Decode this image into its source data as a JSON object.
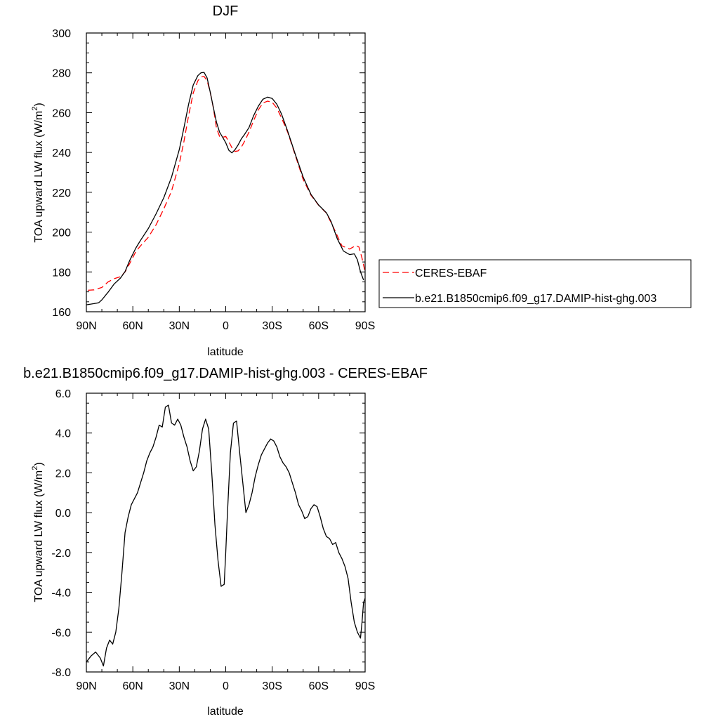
{
  "chart_data": [
    {
      "type": "line",
      "title": "DJF",
      "xlabel": "latitude",
      "ylabel": "TOA upward LW flux (W/m",
      "ylabel_sup": "2",
      "ylabel_end": ")",
      "xlim": [
        90,
        -90
      ],
      "ylim": [
        160,
        300
      ],
      "xticks": [
        90,
        60,
        30,
        0,
        -30,
        -60,
        -90
      ],
      "xticklabels": [
        "90N",
        "60N",
        "30N",
        "0",
        "30S",
        "60S",
        "90S"
      ],
      "yticks": [
        160,
        180,
        200,
        220,
        240,
        260,
        280,
        300
      ],
      "yticklabels": [
        "160",
        "180",
        "200",
        "220",
        "240",
        "260",
        "280",
        "300"
      ],
      "legend_position": "right",
      "series": [
        {
          "name": "CERES-EBAF",
          "color": "#ff0000",
          "dash": "dashed",
          "x": [
            89,
            85,
            80,
            76,
            72,
            68,
            65,
            62,
            58,
            55,
            50,
            45,
            40,
            35,
            30,
            27,
            24,
            21,
            18,
            16,
            14,
            12,
            10,
            8,
            6,
            4,
            2,
            0,
            -2,
            -4,
            -6,
            -8,
            -10,
            -12,
            -15,
            -18,
            -21,
            -24,
            -27,
            -30,
            -33,
            -36,
            -40,
            -45,
            -50,
            -55,
            -60,
            -65,
            -70,
            -75,
            -80,
            -84,
            -86,
            -88,
            -90
          ],
          "y": [
            170.8,
            171,
            172.2,
            175,
            176.6,
            177.6,
            180,
            184.3,
            190.3,
            193.1,
            197.4,
            203.7,
            211.7,
            220.6,
            234.3,
            245.4,
            258.5,
            269.9,
            276,
            277.9,
            278.2,
            276,
            270.3,
            262.3,
            252.3,
            248.1,
            247.6,
            248.1,
            245.4,
            242.4,
            240.5,
            240.8,
            242.6,
            245.4,
            250.2,
            256,
            261.3,
            264.8,
            265.8,
            265.2,
            262.3,
            257.4,
            250.2,
            238.3,
            226.4,
            218.6,
            213.5,
            209.5,
            201.6,
            193.1,
            191.5,
            193.3,
            192.5,
            186.9,
            180
          ]
        },
        {
          "name": "b.e21.B1850cmip6.f09_g17.DAMIP-hist-ghg.003",
          "color": "#000000",
          "dash": "solid",
          "x": [
            90,
            85,
            82,
            80,
            76,
            72,
            68,
            65,
            62,
            58,
            55,
            50,
            45,
            40,
            35,
            30,
            27,
            24,
            21,
            18,
            16,
            14,
            12,
            10,
            8,
            6,
            4,
            2,
            0,
            -2,
            -4,
            -6,
            -8,
            -10,
            -12,
            -15,
            -18,
            -21,
            -24,
            -27,
            -30,
            -33,
            -36,
            -40,
            -45,
            -50,
            -55,
            -60,
            -65,
            -68,
            -72,
            -76,
            -80,
            -83,
            -85,
            -87,
            -89
          ],
          "y": [
            163.5,
            164.1,
            164.5,
            166,
            169.8,
            174,
            176.9,
            180.2,
            185.8,
            192.1,
            195.9,
            201.8,
            209.2,
            217.3,
            227.6,
            241.4,
            252.3,
            264.2,
            273.9,
            278.6,
            280,
            280.2,
            277.4,
            270.3,
            262.5,
            255.2,
            250.2,
            247.6,
            244.9,
            241.1,
            239.8,
            241.4,
            243.8,
            246.8,
            248.9,
            252.5,
            258.5,
            263.2,
            266.7,
            267.8,
            267.1,
            264.2,
            259.3,
            250.7,
            238.8,
            227.6,
            219,
            213.6,
            209.7,
            205.3,
            196.7,
            190.5,
            188.7,
            189.1,
            186.1,
            180.1,
            175.9
          ]
        }
      ]
    },
    {
      "type": "line",
      "title": "b.e21.B1850cmip6.f09_g17.DAMIP-hist-ghg.003 - CERES-EBAF",
      "xlabel": "latitude",
      "ylabel": "TOA upward LW flux (W/m",
      "ylabel_sup": "2",
      "ylabel_end": ")",
      "xlim": [
        90,
        -90
      ],
      "ylim": [
        -8,
        6
      ],
      "xticks": [
        90,
        60,
        30,
        0,
        -30,
        -60,
        -90
      ],
      "xticklabels": [
        "90N",
        "60N",
        "30N",
        "0",
        "30S",
        "60S",
        "90S"
      ],
      "yticks": [
        -8,
        -6,
        -4,
        -2,
        0,
        2,
        4,
        6
      ],
      "yticklabels": [
        "-8.0",
        "-6.0",
        "-4.0",
        "-2.0",
        "0.0",
        "2.0",
        "4.0",
        "6.0"
      ],
      "series": [
        {
          "name": "",
          "color": "#000000",
          "dash": "solid",
          "x": [
            90,
            87,
            84,
            81,
            79,
            77,
            75,
            73,
            71,
            69,
            67,
            65,
            63,
            61,
            59,
            57,
            55,
            53,
            51,
            49,
            47,
            45,
            43,
            41,
            39,
            37,
            35,
            33,
            31,
            29,
            27,
            25,
            23,
            21,
            19,
            17,
            15,
            13,
            11,
            9,
            7,
            5,
            3,
            1,
            0,
            -1,
            -3,
            -5,
            -7,
            -9,
            -11,
            -13,
            -15,
            -17,
            -19,
            -21,
            -23,
            -25,
            -27,
            -29,
            -31,
            -33,
            -35,
            -37,
            -39,
            -41,
            -43,
            -45,
            -47,
            -49,
            -51,
            -53,
            -55,
            -57,
            -59,
            -61,
            -63,
            -65,
            -67,
            -69,
            -71,
            -73,
            -75,
            -77,
            -79,
            -81,
            -83,
            -85,
            -87,
            -88,
            -89,
            -90
          ],
          "y": [
            -7.5,
            -7.2,
            -7.0,
            -7.3,
            -7.7,
            -6.8,
            -6.4,
            -6.6,
            -6.0,
            -4.8,
            -3.0,
            -1.0,
            -0.2,
            0.4,
            0.7,
            1.0,
            1.5,
            2.0,
            2.6,
            3.0,
            3.3,
            3.8,
            4.4,
            4.3,
            5.3,
            5.4,
            4.5,
            4.4,
            4.7,
            4.4,
            3.8,
            3.3,
            2.6,
            2.1,
            2.3,
            3.1,
            4.2,
            4.7,
            4.2,
            2.0,
            -0.6,
            -2.4,
            -3.7,
            -3.6,
            -2.0,
            -0.2,
            3.0,
            4.5,
            4.6,
            3.0,
            1.5,
            0.0,
            0.4,
            1.0,
            1.8,
            2.4,
            2.9,
            3.2,
            3.5,
            3.7,
            3.6,
            3.3,
            2.8,
            2.5,
            2.3,
            2.0,
            1.5,
            1.0,
            0.4,
            0.1,
            -0.3,
            -0.2,
            0.2,
            0.4,
            0.3,
            -0.2,
            -0.8,
            -1.2,
            -1.3,
            -1.6,
            -1.5,
            -2.0,
            -2.3,
            -2.7,
            -3.3,
            -4.5,
            -5.5,
            -6.0,
            -6.3,
            -5.5,
            -4.5,
            -4.3
          ]
        }
      ]
    }
  ]
}
